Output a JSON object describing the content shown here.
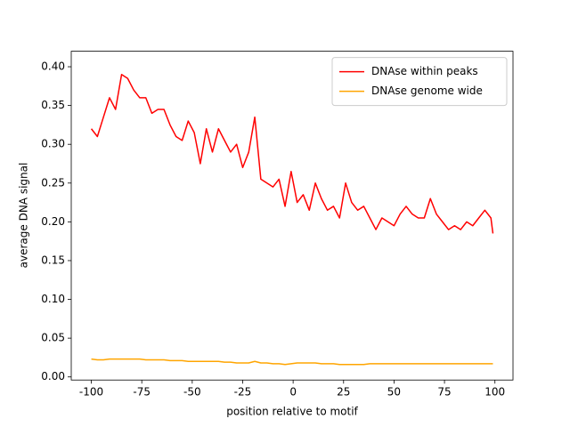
{
  "chart_data": {
    "type": "line",
    "xlabel": "position relative to motif",
    "ylabel": "average DNA signal",
    "x": [
      -100,
      -97,
      -94,
      -91,
      -88,
      -85,
      -82,
      -79,
      -76,
      -73,
      -70,
      -67,
      -64,
      -61,
      -58,
      -55,
      -52,
      -49,
      -46,
      -43,
      -40,
      -37,
      -34,
      -31,
      -28,
      -25,
      -22,
      -19,
      -16,
      -13,
      -10,
      -7,
      -4,
      -1,
      2,
      5,
      8,
      11,
      14,
      17,
      20,
      23,
      26,
      29,
      32,
      35,
      38,
      41,
      44,
      47,
      50,
      53,
      56,
      59,
      62,
      65,
      68,
      71,
      74,
      77,
      80,
      83,
      86,
      89,
      92,
      95,
      98,
      99
    ],
    "series": [
      {
        "name": "DNAse within peaks",
        "color": "#ff0000",
        "values": [
          0.32,
          0.31,
          0.335,
          0.36,
          0.345,
          0.39,
          0.385,
          0.37,
          0.36,
          0.36,
          0.34,
          0.345,
          0.345,
          0.325,
          0.31,
          0.305,
          0.33,
          0.315,
          0.275,
          0.32,
          0.29,
          0.32,
          0.305,
          0.29,
          0.3,
          0.27,
          0.29,
          0.335,
          0.255,
          0.25,
          0.245,
          0.255,
          0.22,
          0.265,
          0.225,
          0.235,
          0.215,
          0.25,
          0.23,
          0.215,
          0.22,
          0.205,
          0.25,
          0.225,
          0.215,
          0.22,
          0.205,
          0.19,
          0.205,
          0.2,
          0.195,
          0.21,
          0.22,
          0.21,
          0.205,
          0.205,
          0.23,
          0.21,
          0.2,
          0.19,
          0.195,
          0.19,
          0.2,
          0.195,
          0.205,
          0.215,
          0.205,
          0.185
        ]
      },
      {
        "name": "DNAse genome wide",
        "color": "#ffa500",
        "values": [
          0.023,
          0.022,
          0.022,
          0.023,
          0.023,
          0.023,
          0.023,
          0.023,
          0.023,
          0.022,
          0.022,
          0.022,
          0.022,
          0.021,
          0.021,
          0.021,
          0.02,
          0.02,
          0.02,
          0.02,
          0.02,
          0.02,
          0.019,
          0.019,
          0.018,
          0.018,
          0.018,
          0.02,
          0.018,
          0.018,
          0.017,
          0.017,
          0.016,
          0.017,
          0.018,
          0.018,
          0.018,
          0.018,
          0.017,
          0.017,
          0.017,
          0.016,
          0.016,
          0.016,
          0.016,
          0.016,
          0.017,
          0.017,
          0.017,
          0.017,
          0.017,
          0.017,
          0.017,
          0.017,
          0.017,
          0.017,
          0.017,
          0.017,
          0.017,
          0.017,
          0.017,
          0.017,
          0.017,
          0.017,
          0.017,
          0.017,
          0.017,
          0.017
        ]
      }
    ],
    "xlim": [
      -109.95,
      108.95
    ],
    "xticks": [
      -100,
      -75,
      -50,
      -25,
      0,
      25,
      50,
      75,
      100
    ],
    "ylim": [
      -0.004,
      0.42
    ],
    "yticks": [
      {
        "value": 0,
        "label": "0.00"
      },
      0.05,
      {
        "value": 0.1,
        "label": "0.10"
      },
      0.15,
      {
        "value": 0.2,
        "label": "0.20"
      },
      0.25,
      {
        "value": 0.3,
        "label": "0.30"
      },
      0.35,
      {
        "value": 0.4,
        "label": "0.40"
      }
    ],
    "grid": false,
    "legend": "upper right"
  }
}
